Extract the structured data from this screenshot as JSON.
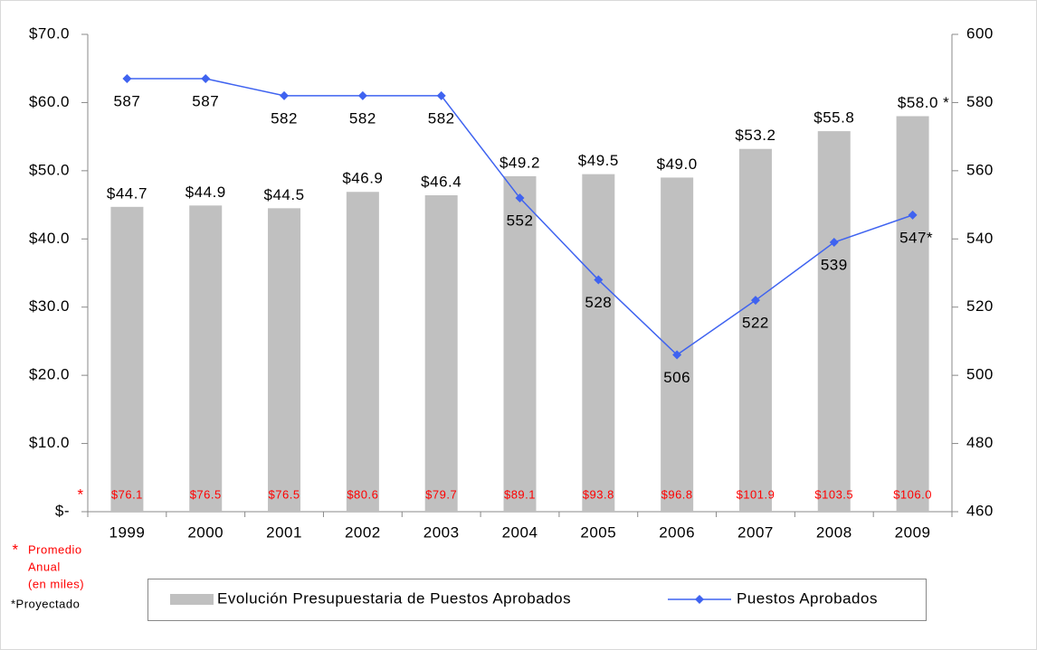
{
  "chart_data": {
    "type": "bar-line",
    "categories": [
      "1999",
      "2000",
      "2001",
      "2002",
      "2003",
      "2004",
      "2005",
      "2006",
      "2007",
      "2008",
      "2009"
    ],
    "series": [
      {
        "name": "Evolución Presupuestaria de Puestos Aprobados",
        "type": "bar",
        "color": "#c0c0c0",
        "axis": "y",
        "values": [
          44.7,
          44.9,
          44.5,
          46.9,
          46.4,
          49.2,
          49.5,
          49.0,
          53.2,
          55.8,
          58.0
        ],
        "value_labels": [
          "$44.7",
          "$44.9",
          "$44.5",
          "$46.9",
          "$46.4",
          "$49.2",
          "$49.5",
          "$49.0",
          "$53.2",
          "$55.8",
          "$58.0 *"
        ]
      },
      {
        "name": "Puestos Aprobados",
        "type": "line",
        "color": "#3f63f0",
        "axis": "y2",
        "values": [
          587,
          587,
          582,
          582,
          582,
          552,
          528,
          506,
          522,
          539,
          547
        ],
        "value_labels": [
          "587",
          "587",
          "582",
          "582",
          "582",
          "552",
          "528",
          "506",
          "522",
          "539",
          "547*"
        ]
      }
    ],
    "annual_average": {
      "values": [
        76.1,
        76.5,
        76.5,
        80.6,
        79.7,
        89.1,
        93.8,
        96.8,
        101.9,
        103.5,
        106.0
      ],
      "value_labels": [
        "$76.1",
        "$76.5",
        "$76.5",
        "$80.6",
        "$79.7",
        "$89.1",
        "$93.8",
        "$96.8",
        "$101.9",
        "$103.5",
        "$106.0"
      ]
    },
    "notes": {
      "asterisk": "*",
      "average_note": [
        "Promedio",
        "Anual",
        "(en miles)"
      ],
      "projected": "*Proyectado"
    },
    "ylim": [
      0,
      70
    ],
    "yticks": [
      {
        "value": 0,
        "label": "$-"
      },
      {
        "value": 10,
        "label": "$10.0"
      },
      {
        "value": 20,
        "label": "$20.0"
      },
      {
        "value": 30,
        "label": "$30.0"
      },
      {
        "value": 40,
        "label": "$40.0"
      },
      {
        "value": 50,
        "label": "$50.0"
      },
      {
        "value": 60,
        "label": "$60.0"
      },
      {
        "value": 70,
        "label": "$70.0"
      }
    ],
    "y2lim": [
      460,
      600
    ],
    "y2ticks": [
      460,
      480,
      500,
      520,
      540,
      560,
      580,
      600
    ],
    "legend": "bottom"
  }
}
